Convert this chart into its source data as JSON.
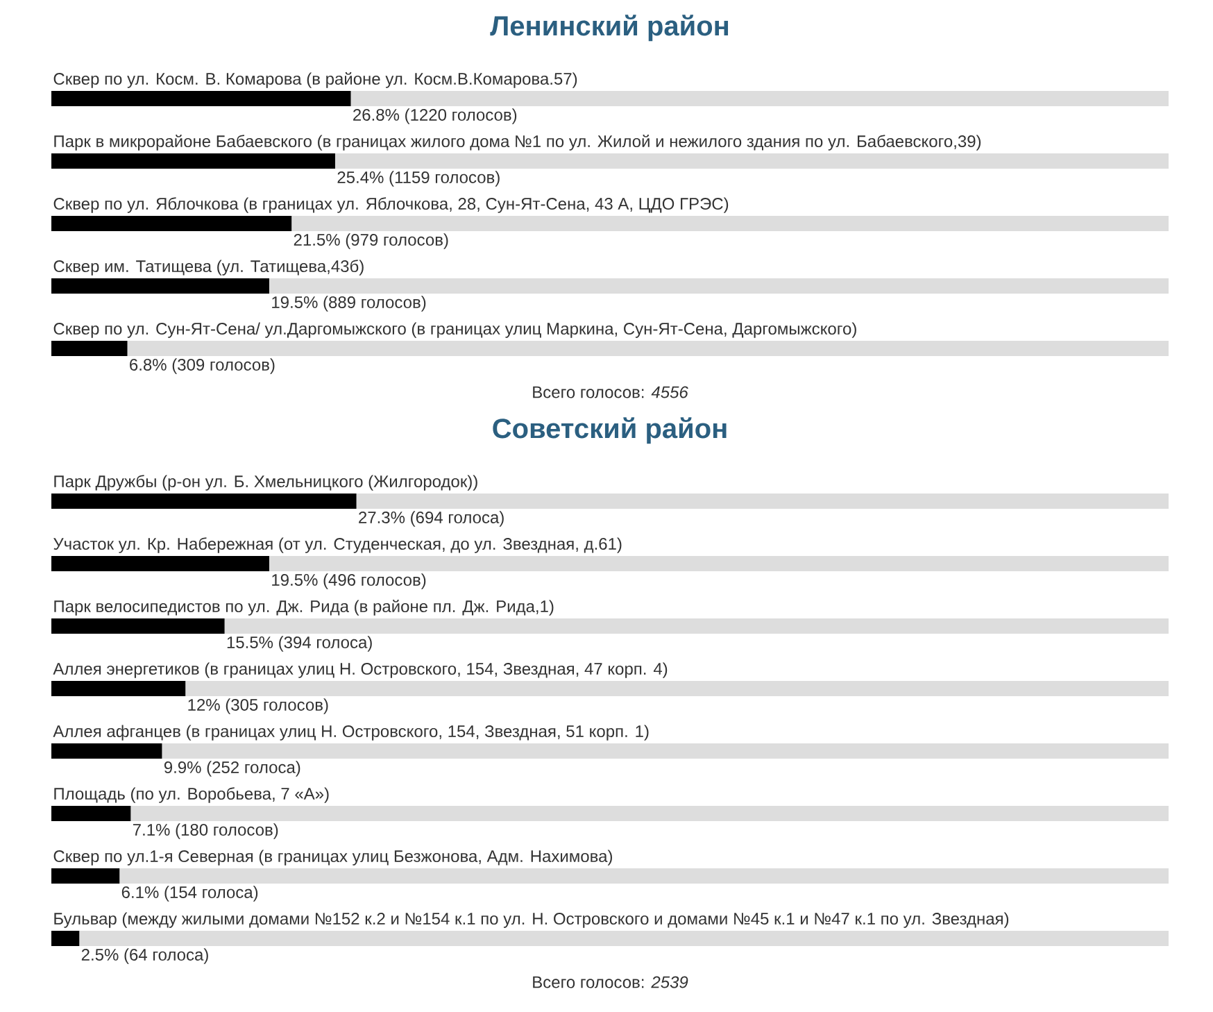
{
  "chart_data": [
    {
      "type": "bar",
      "orientation": "horizontal",
      "title": "Ленинский район",
      "categories": [
        "Сквер по ул. Косм. В. Комарова (в районе ул. Косм.В.Комарова.57)",
        "Парк в микрорайоне Бабаевского (в границах жилого дома №1 по ул. Жилой и нежилого здания по ул. Бабаевского,39)",
        "Сквер по ул. Яблочкова (в границах ул. Яблочкова, 28, Сун-Ят-Сена, 43 А, ЦДО ГРЭС)",
        "Сквер им. Татищева (ул. Татищева,43б)",
        "Сквер по ул. Сун-Ят-Сена/ ул.Даргомыжского (в границах улиц Маркина, Сун-Ят-Сена, Даргомыжского)"
      ],
      "values": [
        26.8,
        25.4,
        21.5,
        19.5,
        6.8
      ],
      "value_labels": [
        "26.8% (1220 голосов)",
        "25.4% (1159 голосов)",
        "21.5% (979 голосов)",
        "19.5% (889 голосов)",
        "6.8% (309 голосов)"
      ],
      "color": "#000000",
      "xlim": [
        0,
        100
      ],
      "tick_labels": false,
      "annotations": [
        "Всего голосов: *4556*"
      ]
    },
    {
      "type": "bar",
      "orientation": "horizontal",
      "title": "Советский район",
      "categories": [
        "Парк Дружбы (р-он ул. Б. Хмельницкого (Жилгородок))",
        "Участок ул. Кр. Набережная (от ул. Студенческая, до ул. Звездная, д.61)",
        "Парк велосипедистов по ул. Дж. Рида (в районе пл. Дж. Рида,1)",
        "Аллея энергетиков (в границах улиц Н. Островского, 154, Звездная, 47 корп. 4)",
        "Аллея афганцев (в границах улиц Н. Островского, 154, Звездная, 51 корп. 1)",
        "Площадь (по ул. Воробьева, 7 «А»)",
        "Сквер по ул.1-я Северная (в границах улиц Безжонова, Адм. Нахимова)",
        "Бульвар (между жилыми домами №152 к.2 и №154 к.1 по ул. Н. Островского и домами №45 к.1 и №47 к.1 по ул. Звездная)"
      ],
      "values": [
        27.3,
        19.5,
        15.5,
        12,
        9.9,
        7.1,
        6.1,
        2.5
      ],
      "value_labels": [
        "27.3% (694 голоса)",
        "19.5% (496 голосов)",
        "15.5% (394 голоса)",
        "12% (305 голосов)",
        "9.9% (252 голоса)",
        "7.1% (180 голосов)",
        "6.1% (154 голоса)",
        "2.5% (64 голоса)"
      ],
      "color": "#000000",
      "xlim": [
        0,
        100
      ],
      "tick_labels": false,
      "annotations": [
        "Всего голосов: *2539*"
      ]
    }
  ]
}
